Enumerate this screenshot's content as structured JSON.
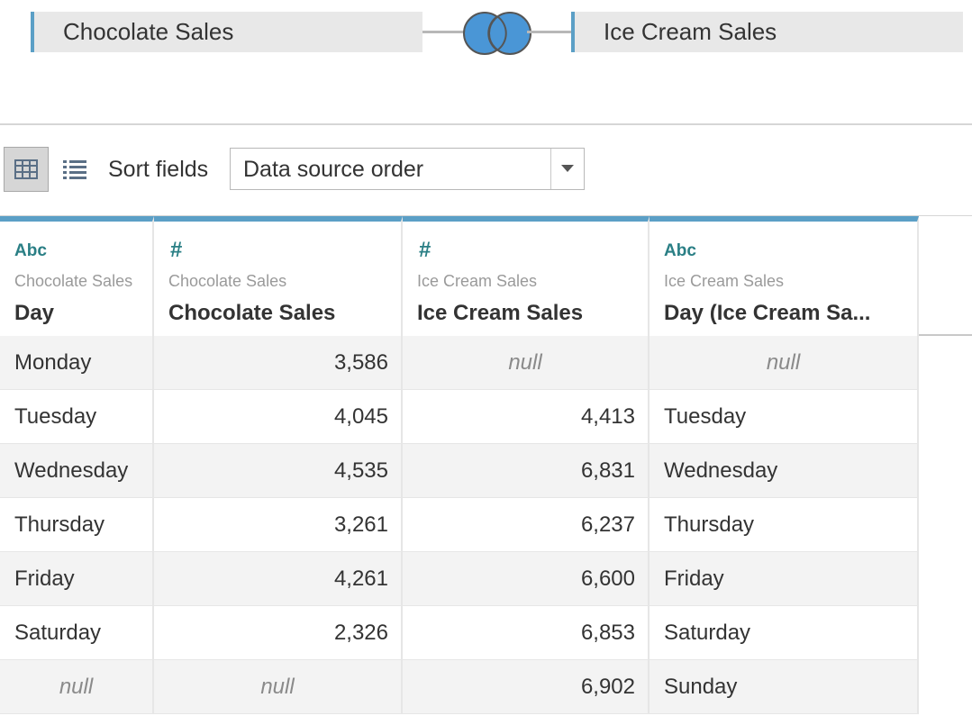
{
  "join": {
    "left_table": "Chocolate Sales",
    "right_table": "Ice Cream Sales",
    "join_type_icon": "full-outer-join-icon",
    "accent_color": "#5b9fc6",
    "join_fill_color": "#4a96d6"
  },
  "toolbar": {
    "grid_view_icon": "grid-view-icon",
    "list_view_icon": "list-view-icon",
    "sort_label": "Sort fields",
    "sort_value": "Data source order",
    "sort_arrow_icon": "chevron-down-icon"
  },
  "columns": [
    {
      "type": "Abc",
      "source": "Chocolate Sales",
      "name": "Day"
    },
    {
      "type": "#",
      "source": "Chocolate Sales",
      "name": "Chocolate Sales"
    },
    {
      "type": "#",
      "source": "Ice Cream Sales",
      "name": "Ice Cream Sales"
    },
    {
      "type": "Abc",
      "source": "Ice Cream Sales",
      "name": "Day (Ice Cream Sa..."
    }
  ],
  "rows": [
    [
      "Monday",
      "3,586",
      "null",
      "null"
    ],
    [
      "Tuesday",
      "4,045",
      "4,413",
      "Tuesday"
    ],
    [
      "Wednesday",
      "4,535",
      "6,831",
      "Wednesday"
    ],
    [
      "Thursday",
      "3,261",
      "6,237",
      "Thursday"
    ],
    [
      "Friday",
      "4,261",
      "6,600",
      "Friday"
    ],
    [
      "Saturday",
      "2,326",
      "6,853",
      "Saturday"
    ],
    [
      "null",
      "null",
      "6,902",
      "Sunday"
    ]
  ]
}
